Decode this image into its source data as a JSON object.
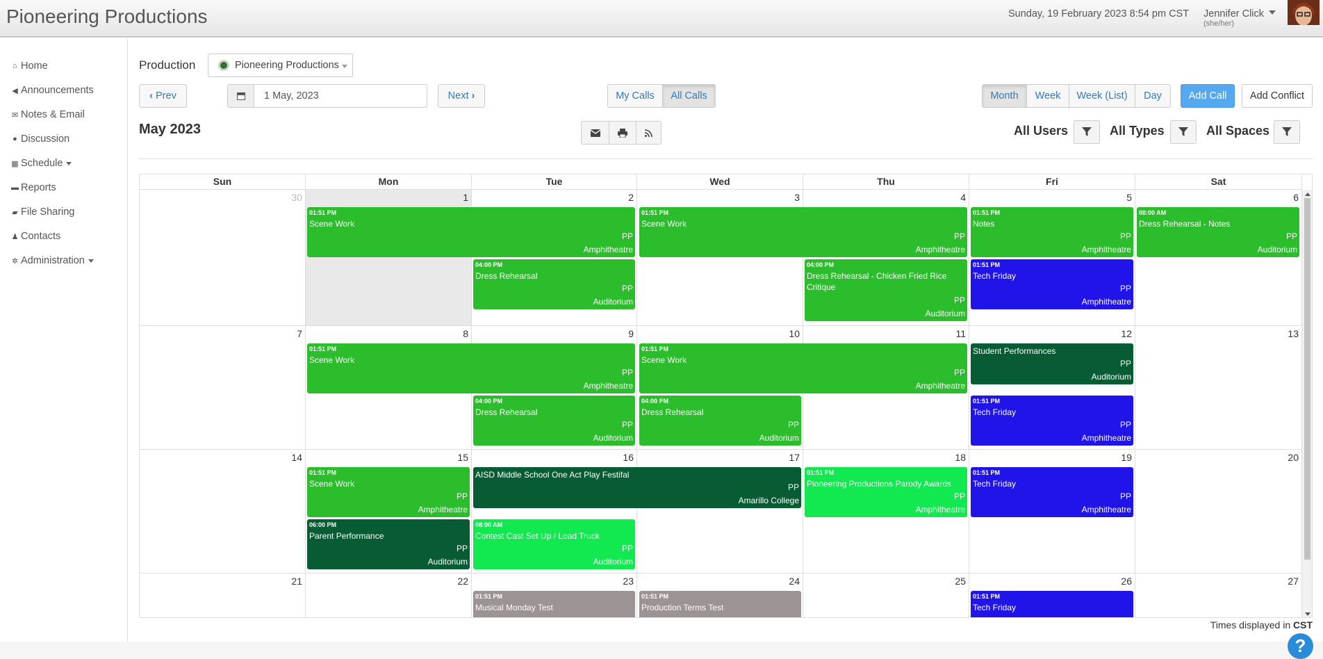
{
  "header": {
    "app_title": "Pioneering Productions",
    "datetime": "Sunday, 19 February 2023 8:54 pm CST",
    "user_name": "Jennifer Click",
    "pronouns": "(she/her)"
  },
  "sidebar": {
    "items": [
      {
        "label": "Home",
        "icon": "home-icon"
      },
      {
        "label": "Announcements",
        "icon": "bullhorn-icon"
      },
      {
        "label": "Notes & Email",
        "icon": "envelope-icon"
      },
      {
        "label": "Discussion",
        "icon": "comment-icon"
      },
      {
        "label": "Schedule",
        "icon": "calendar-icon",
        "dropdown": true
      },
      {
        "label": "Reports",
        "icon": "briefcase-icon"
      },
      {
        "label": "File Sharing",
        "icon": "folder-icon"
      },
      {
        "label": "Contacts",
        "icon": "user-icon"
      },
      {
        "label": "Administration",
        "icon": "gear-icon",
        "dropdown": true
      }
    ]
  },
  "toolbar": {
    "production_label": "Production",
    "production_value": "Pioneering Productions",
    "prev_label": "Prev",
    "next_label": "Next",
    "date_value": "1 May, 2023",
    "my_calls": "My Calls",
    "all_calls": "All Calls",
    "month": "Month",
    "week": "Week",
    "week_list": "Week (List)",
    "day": "Day",
    "add_call": "Add Call",
    "add_conflict": "Add Conflict"
  },
  "calendar": {
    "title": "May 2023",
    "filters": {
      "users": "All Users",
      "types": "All Types",
      "spaces": "All Spaces"
    },
    "days_of_week": [
      "Sun",
      "Mon",
      "Tue",
      "Wed",
      "Thu",
      "Fri",
      "Sat"
    ],
    "weeks": [
      [
        "30",
        "1",
        "2",
        "3",
        "4",
        "5",
        "6"
      ],
      [
        "7",
        "8",
        "9",
        "10",
        "11",
        "12",
        "13"
      ],
      [
        "14",
        "15",
        "16",
        "17",
        "18",
        "19",
        "20"
      ],
      [
        "21",
        "22",
        "23",
        "24",
        "25",
        "26",
        "27"
      ]
    ],
    "events": [
      {
        "time": "01:51 PM",
        "name": "Scene Work",
        "pp": "PP",
        "loc": "Amphitheatre"
      },
      {
        "time": "01:51 PM",
        "name": "Scene Work",
        "pp": "PP",
        "loc": "Amphitheatre"
      },
      {
        "time": "01:51 PM",
        "name": "Notes",
        "pp": "PP",
        "loc": "Amphitheatre"
      },
      {
        "time": "08:00 AM",
        "name": "Dress Rehearsal - Notes",
        "pp": "PP",
        "loc": "Auditorium"
      },
      {
        "time": "04:00 PM",
        "name": "Dress Rehearsal",
        "pp": "PP",
        "loc": "Auditorium"
      },
      {
        "time": "04:00 PM",
        "name": "Dress Rehearsal - Chicken Fried Rice Critique",
        "pp": "PP",
        "loc": "Auditorium"
      },
      {
        "time": "01:51 PM",
        "name": "Tech Friday",
        "pp": "PP",
        "loc": "Amphitheatre"
      },
      {
        "time": "01:51 PM",
        "name": "Scene Work",
        "pp": "PP",
        "loc": "Amphitheatre"
      },
      {
        "time": "01:51 PM",
        "name": "Scene Work",
        "pp": "PP",
        "loc": "Amphitheatre"
      },
      {
        "time": "",
        "name": "Student Performances",
        "pp": "PP",
        "loc": "Auditorium"
      },
      {
        "time": "04:00 PM",
        "name": "Dress Rehearsal",
        "pp": "PP",
        "loc": "Auditorium"
      },
      {
        "time": "04:00 PM",
        "name": "Dress Rehearsal",
        "pp": "PP",
        "loc": "Auditorium"
      },
      {
        "time": "01:51 PM",
        "name": "Tech Friday",
        "pp": "PP",
        "loc": "Amphitheatre"
      },
      {
        "time": "01:51 PM",
        "name": "Scene Work",
        "pp": "PP",
        "loc": "Amphitheatre"
      },
      {
        "time": "",
        "name": "AISD Middle School One Act Play Festifal",
        "pp": "PP",
        "loc": "Amarillo College"
      },
      {
        "time": "01:51 PM",
        "name": "Pioneering Productions Parody Awards",
        "pp": "PP",
        "loc": "Amphitheatre"
      },
      {
        "time": "01:51 PM",
        "name": "Tech Friday",
        "pp": "PP",
        "loc": "Amphitheatre"
      },
      {
        "time": "06:00 PM",
        "name": "Parent Performance",
        "pp": "PP",
        "loc": "Auditorium"
      },
      {
        "time": "08:00 AM",
        "name": "Contest Cast Set Up / Load Truck",
        "pp": "PP",
        "loc": "Auditorium"
      },
      {
        "time": "01:51 PM",
        "name": "Musical Monday Test",
        "pp": "",
        "loc": ""
      },
      {
        "time": "01:51 PM",
        "name": "Production Terms Test",
        "pp": "",
        "loc": ""
      },
      {
        "time": "01:51 PM",
        "name": "Tech Friday",
        "pp": "",
        "loc": ""
      }
    ]
  },
  "colors": {
    "green": "#2bbd2b",
    "dark_green": "#075c33",
    "bright_green": "#12e84f",
    "blue": "#2014e8",
    "gray": "#9c9494",
    "primary_button": "#56a8f0"
  },
  "footer": {
    "tz_prefix": "Times displayed in",
    "tz_value": "CST",
    "help": "?"
  }
}
